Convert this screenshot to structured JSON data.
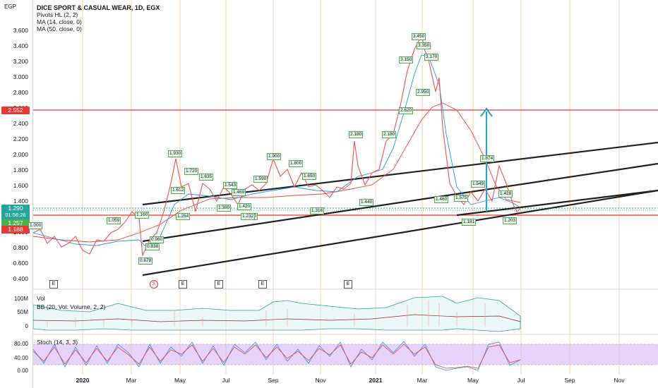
{
  "symbol": {
    "currency": "EGP",
    "title": "DICE SPORT & CASUAL WEAR, 1D, EGX"
  },
  "indicators": {
    "pivots": "Pivots HL (2, 2)",
    "ma1": "MA (14, close, 0)",
    "ma2": "MA (50, close, 0)",
    "vol": "Vol",
    "bb": "BB (20, Vol: Volume, 2, 2)",
    "stoch": "Stoch (14, 3, 3)"
  },
  "price_axis": {
    "ticks": [
      "3.600",
      "3.400",
      "3.200",
      "3.000",
      "2.800",
      "2.600",
      "2.400",
      "2.200",
      "2.000",
      "1.800",
      "1.600",
      "1.400",
      "1.200",
      "1.000",
      "0.800",
      "0.600",
      "0.400"
    ],
    "level_label": "2.552",
    "last_price": "1.290",
    "countdown": "01:56:26",
    "bid": "1.257",
    "support_label": "1.188"
  },
  "volume_axis": {
    "ticks": [
      "100M",
      "50M",
      "0"
    ]
  },
  "stoch_axis": {
    "ticks": [
      "80.00",
      "40.00",
      "0.00"
    ]
  },
  "time_axis": {
    "ticks": [
      "2020",
      "Mar",
      "May",
      "Jul",
      "Sep",
      "Nov",
      "2021",
      "Mar",
      "May",
      "Jul",
      "Sep",
      "Nov"
    ]
  },
  "badges": {
    "earnings": "E",
    "split": "S"
  },
  "pivot_labels": [
    "3.450",
    "3.350",
    "3.170",
    "3.150",
    "2.950",
    "2.620",
    "2.180",
    "2.180",
    "1.930",
    "1.900",
    "1.800",
    "1.874",
    "1.720",
    "1.650",
    "1.635",
    "1.612",
    "1.590",
    "1.575",
    "1.549",
    "1.543",
    "1.469",
    "1.460",
    "1.440",
    "1.429",
    "1.420",
    "1.380",
    "1.330",
    "1.316",
    "1.264",
    "1.232",
    "1.181",
    "1.160",
    "1.059",
    "1.000",
    "0.960",
    "0.838",
    "0.678",
    "1.203"
  ],
  "colors": {
    "price_up": "#26a69a",
    "price_down": "#ef5350",
    "ma14": "#2196f3",
    "ma50": "#f44336",
    "level_line": "#e53935",
    "trend_line": "#1a1a1a",
    "arrow": "#29a3c7",
    "stoch_band": "#d7b5f7"
  }
}
